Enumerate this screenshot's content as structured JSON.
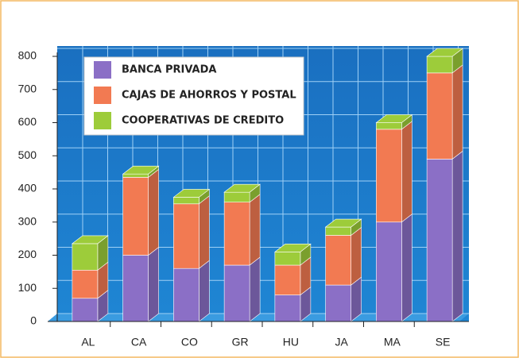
{
  "chart_data": {
    "type": "bar3d_stacked",
    "categories": [
      "AL",
      "CA",
      "CO",
      "GR",
      "HU",
      "JA",
      "MA",
      "SE"
    ],
    "series": [
      {
        "name": "BANCA PRIVADA",
        "color": "#8b6fc6",
        "values": [
          70,
          200,
          160,
          170,
          80,
          110,
          300,
          490
        ]
      },
      {
        "name": "CAJAS DE AHORROS Y POSTAL",
        "color": "#f27a52",
        "values": [
          85,
          235,
          195,
          190,
          90,
          150,
          280,
          260
        ]
      },
      {
        "name": "COOPERATIVAS DE CREDITO",
        "color": "#9dcc3a",
        "values": [
          80,
          10,
          20,
          30,
          40,
          25,
          20,
          50
        ]
      }
    ],
    "ylim": [
      0,
      800
    ],
    "yticks": [
      0,
      100,
      200,
      300,
      400,
      500,
      600,
      700,
      800
    ],
    "grid": true,
    "legend": "top-left"
  }
}
